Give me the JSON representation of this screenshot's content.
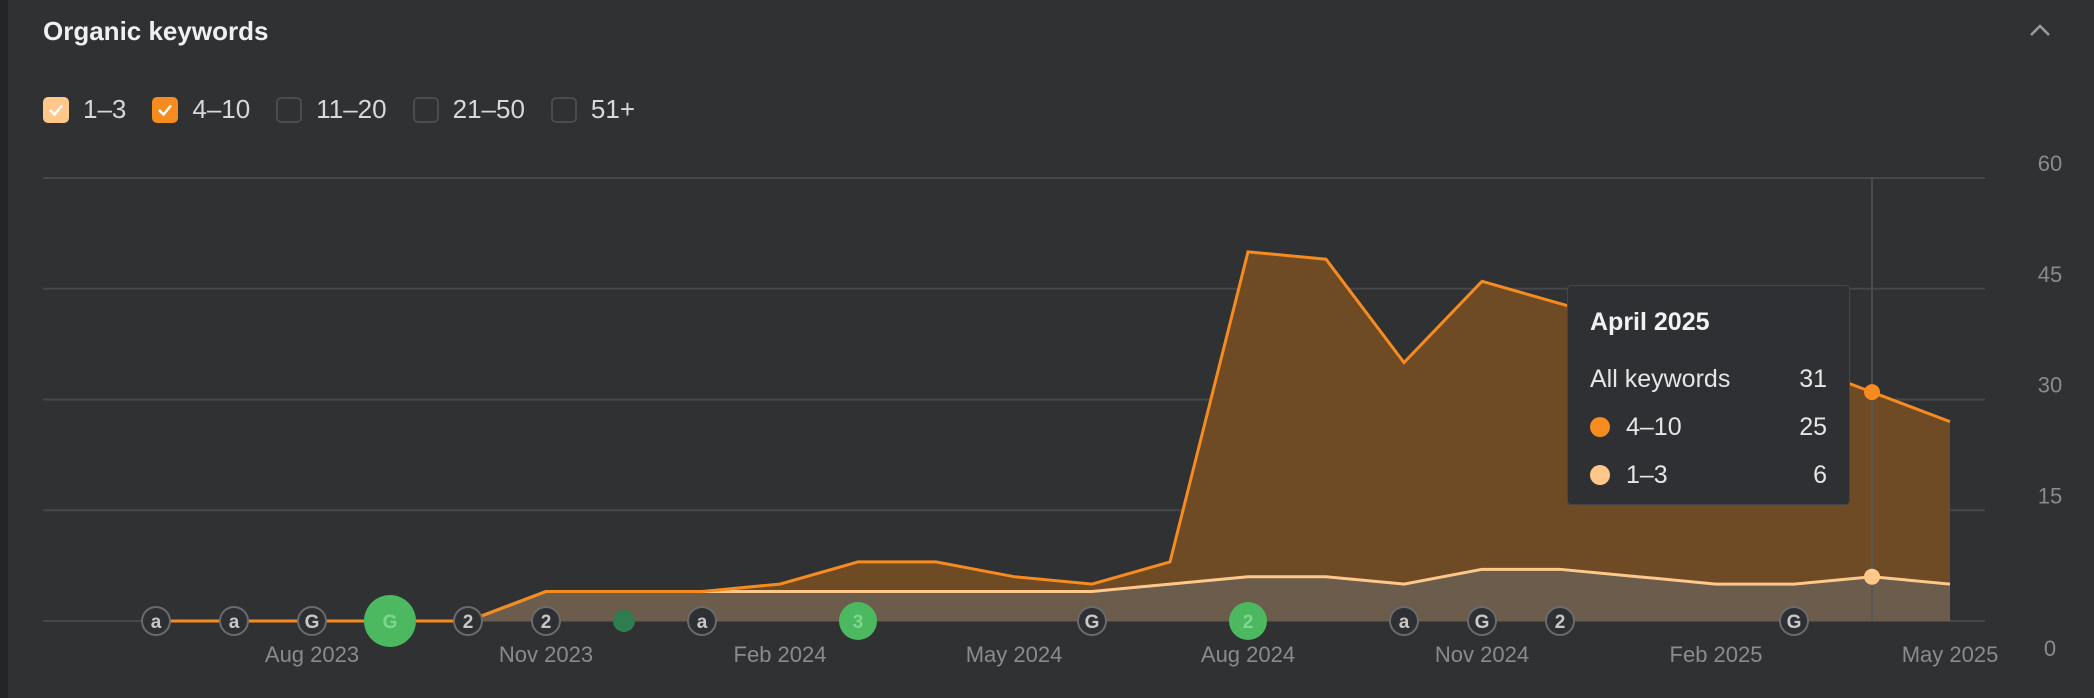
{
  "header": {
    "title": "Organic keywords",
    "collapse_icon": "chevron-up-icon"
  },
  "filters": [
    {
      "label": "1–3",
      "checked": true,
      "color": "#ffc88a"
    },
    {
      "label": "4–10",
      "checked": true,
      "color": "#f68b1f"
    },
    {
      "label": "11–20",
      "checked": false
    },
    {
      "label": "21–50",
      "checked": false
    },
    {
      "label": "51+",
      "checked": false
    }
  ],
  "tooltip": {
    "title": "April 2025",
    "rows": [
      {
        "label": "All keywords",
        "value": "31"
      },
      {
        "label": "4–10",
        "value": "25",
        "color": "#f68b1f"
      },
      {
        "label": "1–3",
        "value": "6",
        "color": "#ffc88a"
      }
    ]
  },
  "chart_data": {
    "type": "area",
    "stacked": true,
    "title": "Organic keywords",
    "x": [
      "Jun 2023",
      "Jul 2023",
      "Aug 2023",
      "Sep 2023",
      "Oct 2023",
      "Nov 2023",
      "Dec 2023",
      "Jan 2024",
      "Feb 2024",
      "Mar 2024",
      "Apr 2024",
      "May 2024",
      "Jun 2024",
      "Jul 2024",
      "Aug 2024",
      "Sep 2024",
      "Oct 2024",
      "Nov 2024",
      "Dec 2024",
      "Jan 2025",
      "Feb 2025",
      "Mar 2025",
      "Apr 2025",
      "May 2025"
    ],
    "x_tick_labels": [
      "Aug 2023",
      "Nov 2023",
      "Feb 2024",
      "May 2024",
      "Aug 2024",
      "Nov 2024",
      "Feb 2025",
      "May 2025"
    ],
    "y_tick_labels": [
      "0",
      "15",
      "30",
      "45",
      "60"
    ],
    "ylim": [
      0,
      60
    ],
    "y_axis_position": "right",
    "grid": true,
    "series": [
      {
        "name": "1–3",
        "color": "#ffc88a",
        "values": [
          0,
          0,
          0,
          0,
          0,
          4,
          4,
          4,
          4,
          4,
          4,
          4,
          4,
          5,
          6,
          6,
          5,
          7,
          7,
          6,
          5,
          5,
          6,
          5
        ]
      },
      {
        "name": "4–10",
        "color": "#f68b1f",
        "values": [
          0,
          0,
          0,
          0,
          0,
          0,
          0,
          0,
          1,
          4,
          4,
          2,
          1,
          3,
          44,
          43,
          30,
          39,
          36,
          34,
          32,
          30,
          25,
          22
        ]
      }
    ],
    "hover_index": 22,
    "events": [
      {
        "x": "Jun 2023",
        "icon": "a",
        "highlight": false
      },
      {
        "x": "Jul 2023",
        "icon": "a",
        "highlight": false
      },
      {
        "x": "Aug 2023",
        "icon": "G",
        "highlight": false
      },
      {
        "x": "Sep 2023",
        "icon": "G",
        "highlight": true,
        "size": "large"
      },
      {
        "x": "Oct 2023",
        "icon": "2",
        "highlight": false
      },
      {
        "x": "Nov 2023",
        "icon": "2",
        "highlight": false
      },
      {
        "x": "Dec 2023",
        "icon": "",
        "highlight": true,
        "size": "small"
      },
      {
        "x": "Jan 2024",
        "icon": "a",
        "highlight": false
      },
      {
        "x": "Mar 2024",
        "icon": "3",
        "highlight": true,
        "size": "medium"
      },
      {
        "x": "Jun 2024",
        "icon": "G",
        "highlight": false
      },
      {
        "x": "Aug 2024",
        "icon": "2",
        "highlight": true,
        "size": "medium"
      },
      {
        "x": "Oct 2024",
        "icon": "a",
        "highlight": false
      },
      {
        "x": "Nov 2024",
        "icon": "G",
        "highlight": false
      },
      {
        "x": "Dec 2024",
        "icon": "2",
        "highlight": false
      },
      {
        "x": "Mar 2025",
        "icon": "G",
        "highlight": false
      }
    ]
  }
}
